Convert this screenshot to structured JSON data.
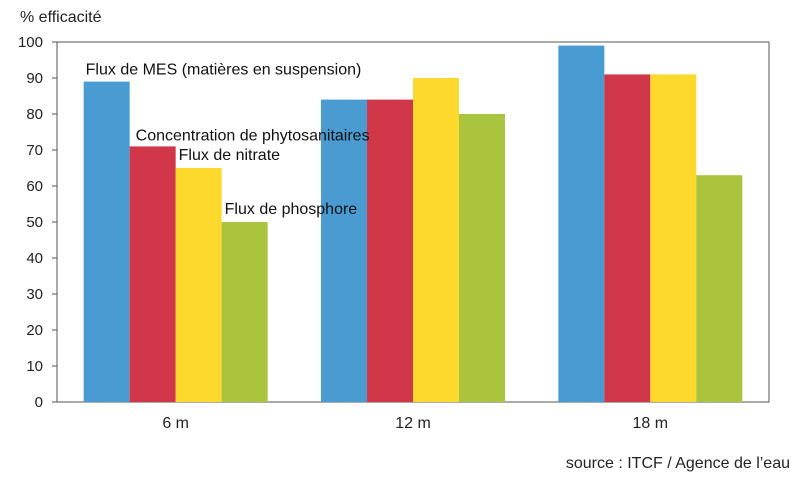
{
  "chart_data": {
    "type": "bar",
    "ylabel": "% efficacité",
    "ylim": [
      0,
      100
    ],
    "yticks": [
      0,
      10,
      20,
      30,
      40,
      50,
      60,
      70,
      80,
      90,
      100
    ],
    "categories": [
      "6 m",
      "12 m",
      "18 m"
    ],
    "series": [
      {
        "name": "Flux de MES (matières en suspension)",
        "color": "#4a9bd1",
        "values": [
          89,
          84,
          99
        ]
      },
      {
        "name": "Concentration de phytosanitaires",
        "color": "#d0384a",
        "values": [
          71,
          84,
          91
        ]
      },
      {
        "name": "Flux de nitrate",
        "color": "#fcd92c",
        "values": [
          65,
          90,
          91
        ]
      },
      {
        "name": "Flux de phosphore",
        "color": "#abc43d",
        "values": [
          50,
          80,
          63
        ]
      }
    ],
    "grid": false,
    "source": "source : ITCF / Agence de l’eau"
  }
}
